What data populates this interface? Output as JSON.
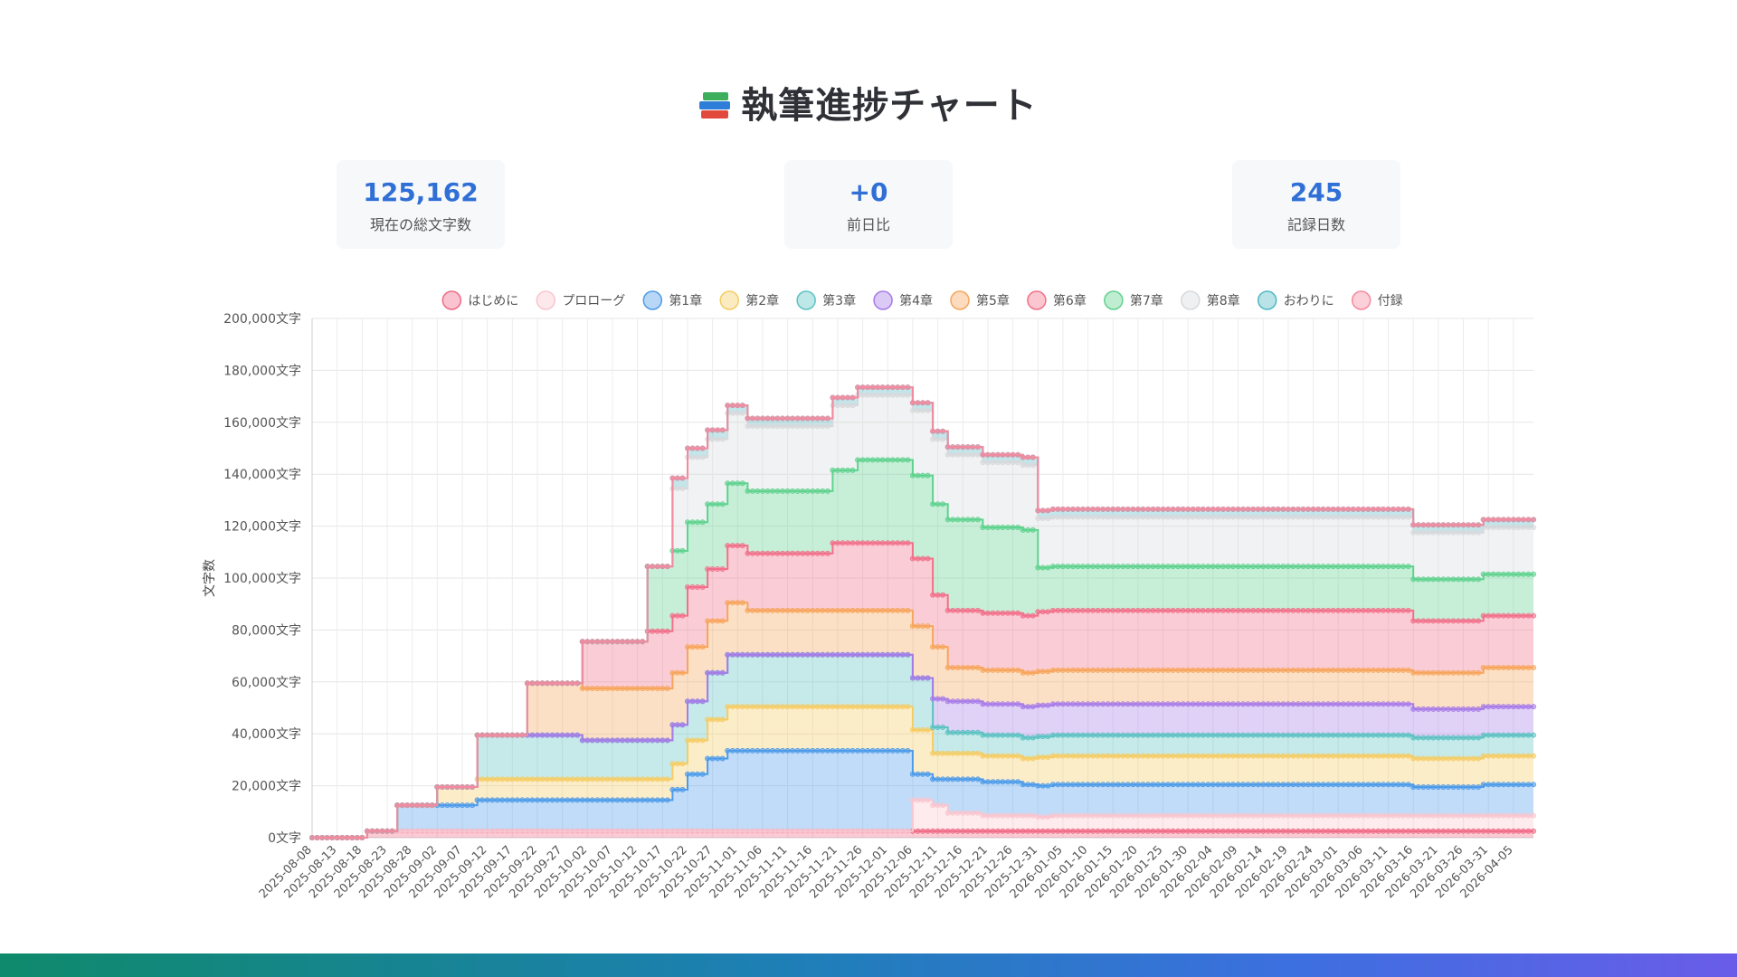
{
  "page": {
    "title": "執筆進捗チャート",
    "title_icon": "books-icon"
  },
  "stats": [
    {
      "value": "125,162",
      "label": "現在の総文字数"
    },
    {
      "value": "+0",
      "label": "前日比"
    },
    {
      "value": "245",
      "label": "記録日数"
    }
  ],
  "chart_data": {
    "type": "area",
    "stacked": true,
    "title": "",
    "xlabel": "",
    "ylabel": "文字数",
    "y_tick_suffix": "文字",
    "ylim": [
      0,
      200000
    ],
    "y_ticks": [
      "0文字",
      "20,000文字",
      "40,000文字",
      "60,000文字",
      "80,000文字",
      "100,000文字",
      "120,000文字",
      "140,000文字",
      "160,000文字",
      "180,000文字",
      "200,000文字"
    ],
    "x_range": [
      "2025-08-08",
      "2026-04-09"
    ],
    "x_tick_labels": [
      "2025-08-08",
      "2025-08-13",
      "2025-08-18",
      "2025-08-23",
      "2025-08-28",
      "2025-09-02",
      "2025-09-07",
      "2025-09-12",
      "2025-09-17",
      "2025-09-22",
      "2025-09-27",
      "2025-10-02",
      "2025-10-07",
      "2025-10-12",
      "2025-10-17",
      "2025-10-22",
      "2025-10-27",
      "2025-11-01",
      "2025-11-06",
      "2025-11-11",
      "2025-11-16",
      "2025-11-21",
      "2025-11-26",
      "2025-12-01",
      "2025-12-06",
      "2025-12-11",
      "2025-12-16",
      "2025-12-21",
      "2025-12-26",
      "2025-12-31",
      "2026-01-05",
      "2026-01-10",
      "2026-01-15",
      "2026-01-20",
      "2026-01-25",
      "2026-01-30",
      "2026-02-04",
      "2026-02-09",
      "2026-02-14",
      "2026-02-19",
      "2026-02-24",
      "2026-03-01",
      "2026-03-06",
      "2026-03-11",
      "2026-03-16",
      "2026-03-21",
      "2026-03-26",
      "2026-03-31",
      "2026-04-05"
    ],
    "legend_position": "top",
    "grid": true,
    "x_breakpoints": [
      "2025-08-08",
      "2025-08-19",
      "2025-08-25",
      "2025-09-02",
      "2025-09-10",
      "2025-09-20",
      "2025-10-01",
      "2025-10-14",
      "2025-10-19",
      "2025-10-22",
      "2025-10-26",
      "2025-10-30",
      "2025-11-03",
      "2025-11-09",
      "2025-11-20",
      "2025-11-25",
      "2025-12-02",
      "2025-12-06",
      "2025-12-10",
      "2025-12-13",
      "2025-12-20",
      "2025-12-28",
      "2025-12-31",
      "2026-01-03",
      "2026-03-15",
      "2026-03-16",
      "2026-03-30",
      "2026-04-09"
    ],
    "series": [
      {
        "name": "はじめに",
        "color": "#f06a86",
        "values": [
          0,
          2500,
          2500,
          2500,
          2500,
          2500,
          2500,
          2500,
          2500,
          2500,
          2500,
          2500,
          2500,
          2500,
          2500,
          2500,
          2500,
          2500,
          2500,
          2500,
          2500,
          2500,
          2500,
          2500,
          2500,
          2500,
          2500,
          2500
        ]
      },
      {
        "name": "プロローグ",
        "color": "#f9c6cf",
        "values": [
          0,
          0,
          0,
          0,
          0,
          0,
          0,
          0,
          0,
          0,
          0,
          0,
          0,
          0,
          0,
          0,
          0,
          12000,
          10000,
          7000,
          6000,
          6000,
          5500,
          6000,
          6000,
          6000,
          6000,
          6000
        ]
      },
      {
        "name": "第1章",
        "color": "#4d9bea",
        "values": [
          0,
          0,
          10000,
          10000,
          12000,
          12000,
          12000,
          12000,
          16000,
          22000,
          28000,
          31000,
          31000,
          31000,
          31000,
          31000,
          31000,
          10000,
          10000,
          13000,
          13000,
          12000,
          12000,
          12000,
          12000,
          11000,
          12000,
          12000
        ]
      },
      {
        "name": "第2章",
        "color": "#f5cc64",
        "values": [
          0,
          0,
          0,
          7000,
          8000,
          8000,
          8000,
          8000,
          10000,
          13000,
          15000,
          17000,
          17000,
          17000,
          17000,
          17000,
          17000,
          17000,
          10000,
          10000,
          10000,
          10000,
          11000,
          11000,
          11000,
          11000,
          11000,
          11000
        ]
      },
      {
        "name": "第3章",
        "color": "#5cc2c2",
        "values": [
          0,
          0,
          0,
          0,
          17000,
          17000,
          15000,
          15000,
          15000,
          15000,
          18000,
          20000,
          20000,
          20000,
          20000,
          20000,
          20000,
          20000,
          10000,
          8000,
          8000,
          8000,
          8000,
          8000,
          8000,
          8000,
          8000,
          8000
        ]
      },
      {
        "name": "第4章",
        "color": "#a77be8",
        "values": [
          0,
          0,
          0,
          0,
          0,
          0,
          0,
          0,
          0,
          0,
          0,
          0,
          0,
          0,
          0,
          0,
          0,
          0,
          11000,
          12000,
          12000,
          12000,
          12000,
          12000,
          12000,
          11000,
          11000,
          11000
        ]
      },
      {
        "name": "第5章",
        "color": "#f7a55c",
        "values": [
          0,
          0,
          0,
          0,
          0,
          20000,
          20000,
          20000,
          20000,
          21000,
          20000,
          20000,
          17000,
          17000,
          17000,
          17000,
          17000,
          20000,
          20000,
          13000,
          13000,
          13000,
          13000,
          13000,
          13000,
          14000,
          15000,
          15000
        ]
      },
      {
        "name": "第6章",
        "color": "#f2708a",
        "values": [
          0,
          0,
          0,
          0,
          0,
          0,
          18000,
          22000,
          22000,
          23000,
          20000,
          22000,
          22000,
          22000,
          26000,
          26000,
          26000,
          26000,
          20000,
          22000,
          22000,
          22000,
          23000,
          23000,
          23000,
          20000,
          20000,
          20000
        ]
      },
      {
        "name": "第7章",
        "color": "#5fd28e",
        "values": [
          0,
          0,
          0,
          0,
          0,
          0,
          0,
          25000,
          25000,
          25000,
          25000,
          24000,
          24000,
          24000,
          28000,
          32000,
          32000,
          32000,
          35000,
          35000,
          33000,
          33000,
          17000,
          17000,
          17000,
          16000,
          16000,
          16000
        ]
      },
      {
        "name": "第8章",
        "color": "#d8d9dc",
        "values": [
          0,
          0,
          0,
          0,
          0,
          0,
          0,
          0,
          24000,
          25000,
          25000,
          27000,
          25000,
          25000,
          25000,
          25000,
          25000,
          25000,
          25000,
          25000,
          25000,
          25000,
          19000,
          19000,
          19000,
          18000,
          18000,
          18000
        ]
      },
      {
        "name": "おわりに",
        "color": "#4fb8c4",
        "values": [
          0,
          0,
          0,
          0,
          0,
          0,
          0,
          0,
          4000,
          3500,
          3500,
          3000,
          3000,
          3000,
          3000,
          3000,
          3000,
          3000,
          3000,
          3000,
          3000,
          3000,
          3000,
          3000,
          3000,
          3000,
          3000,
          3000
        ]
      },
      {
        "name": "付録",
        "color": "#f5899e",
        "values": [
          0,
          0,
          0,
          0,
          0,
          0,
          0,
          0,
          0,
          0,
          0,
          0,
          0,
          0,
          0,
          0,
          0,
          0,
          0,
          0,
          0,
          0,
          0,
          0,
          0,
          0,
          0,
          0
        ]
      }
    ]
  }
}
